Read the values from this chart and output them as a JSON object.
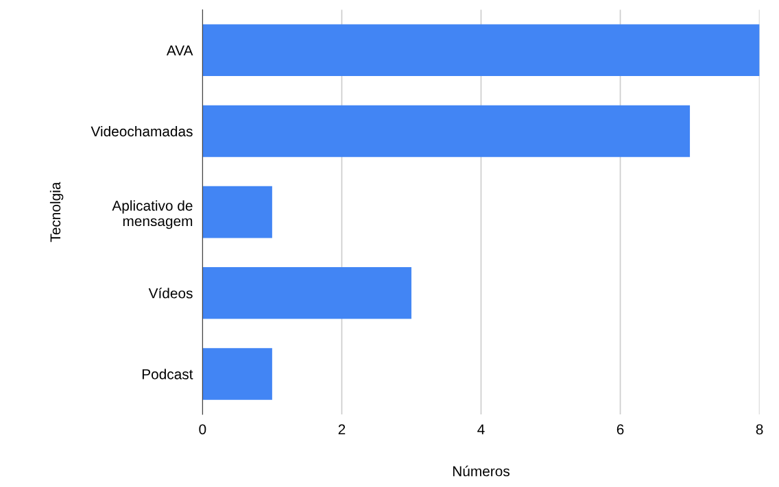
{
  "chart_data": {
    "type": "bar",
    "orientation": "horizontal",
    "xlabel": "Números",
    "ylabel": "Tecnolgia",
    "categories": [
      "AVA",
      "Videochamadas",
      "Aplicativo de\nmensagem",
      "Vídeos",
      "Podcast"
    ],
    "values": [
      8,
      7,
      1,
      3,
      1
    ],
    "color": "#4285f4",
    "xlim": [
      0,
      8
    ],
    "xticks": [
      0,
      2,
      4,
      6,
      8
    ],
    "grid": "x",
    "legend": false
  }
}
